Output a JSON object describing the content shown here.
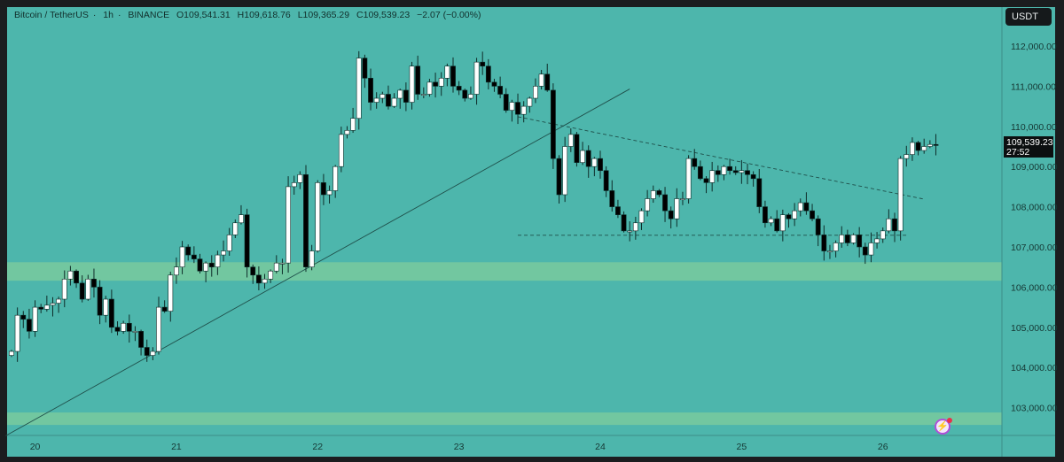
{
  "header": {
    "symbol": "Bitcoin / TetherUS",
    "interval": "1h",
    "exchange": "BINANCE",
    "open": "O109,541.31",
    "high": "H109,618.76",
    "low": "L109,365.29",
    "close": "C109,539.23",
    "change": "−2.07 (−0.00%)"
  },
  "currency_button": "USDT",
  "last_price": {
    "price": "109,539.23",
    "countdown": "27:52"
  },
  "colors": {
    "background": "#4db6ac",
    "up_body": "#ffffff",
    "down_body": "#000000",
    "zone": "#7fcc9c"
  },
  "chart_data": {
    "type": "candlestick",
    "title": "Bitcoin / TetherUS · 1h · BINANCE",
    "ylim": [
      102300,
      112600
    ],
    "y_ticks": [
      {
        "value": 112000,
        "label": "112,000.00"
      },
      {
        "value": 111000,
        "label": "111,000.00"
      },
      {
        "value": 110000,
        "label": "110,000.00"
      },
      {
        "value": 109000,
        "label": "109,000.00"
      },
      {
        "value": 108000,
        "label": "108,000.00"
      },
      {
        "value": 107000,
        "label": "107,000.00"
      },
      {
        "value": 106000,
        "label": "106,000.00"
      },
      {
        "value": 105000,
        "label": "105,000.00"
      },
      {
        "value": 104000,
        "label": "104,000.00"
      },
      {
        "value": 103000,
        "label": "103,000.00"
      }
    ],
    "x_ticks": [
      {
        "candle_index": 4,
        "label": "20"
      },
      {
        "candle_index": 28,
        "label": "21"
      },
      {
        "candle_index": 52,
        "label": "22"
      },
      {
        "candle_index": 76,
        "label": "23"
      },
      {
        "candle_index": 100,
        "label": "24"
      },
      {
        "candle_index": 124,
        "label": "25"
      },
      {
        "candle_index": 148,
        "label": "26"
      }
    ],
    "first_open": 104300,
    "closes": [
      104400,
      105300,
      105200,
      104900,
      105500,
      105450,
      105550,
      105600,
      105700,
      106200,
      106400,
      106100,
      105700,
      106200,
      106000,
      105300,
      105700,
      105000,
      104900,
      105100,
      104900,
      104900,
      104500,
      104300,
      104400,
      105500,
      105400,
      106300,
      106500,
      107000,
      106800,
      106700,
      106400,
      106600,
      106500,
      106800,
      106900,
      107300,
      107600,
      107800,
      106500,
      106300,
      106100,
      106200,
      106400,
      106600,
      106600,
      108500,
      108600,
      108800,
      106500,
      106900,
      108600,
      108300,
      108400,
      109000,
      109800,
      109900,
      110200,
      111700,
      111200,
      110600,
      110700,
      110800,
      110500,
      110700,
      110900,
      110600,
      111500,
      110800,
      110800,
      111100,
      111000,
      111200,
      111500,
      111000,
      110900,
      110700,
      110800,
      111600,
      111500,
      111100,
      111000,
      110800,
      110400,
      110600,
      110300,
      110500,
      110700,
      111000,
      111300,
      110900,
      109200,
      108300,
      109500,
      109800,
      109100,
      109400,
      109000,
      109200,
      108900,
      108400,
      108000,
      107800,
      107400,
      107400,
      107600,
      107900,
      108200,
      108400,
      108300,
      107900,
      107700,
      108200,
      108200,
      109200,
      109000,
      108700,
      108600,
      108900,
      108800,
      109000,
      108900,
      108850,
      108900,
      108800,
      108700,
      108000,
      107600,
      107700,
      107400,
      107800,
      107700,
      107900,
      108100,
      107900,
      107700,
      107300,
      106900,
      106900,
      107100,
      107300,
      107100,
      107300,
      107000,
      106800,
      107100,
      107200,
      107400,
      107700,
      107400,
      109200,
      109300,
      109600,
      109400,
      109500,
      109550,
      109539.23
    ],
    "zones": [
      {
        "name": "support-zone-upper",
        "from": 106160,
        "to": 106620
      },
      {
        "name": "support-zone-lower",
        "from": 102570,
        "to": 102880
      }
    ],
    "lines": [
      {
        "name": "ascending-trendline",
        "style": "solid",
        "from": {
          "candle_index": -1,
          "price": 102300
        },
        "to": {
          "candle_index": 105,
          "price": 110930
        }
      },
      {
        "name": "descending-trendline",
        "style": "dashed",
        "from": {
          "candle_index": 86,
          "price": 110240
        },
        "to": {
          "candle_index": 155,
          "price": 108190
        }
      },
      {
        "name": "range-low-line",
        "style": "dashed",
        "from": {
          "candle_index": 86,
          "price": 107290
        },
        "to": {
          "candle_index": 152,
          "price": 107290
        }
      }
    ]
  }
}
